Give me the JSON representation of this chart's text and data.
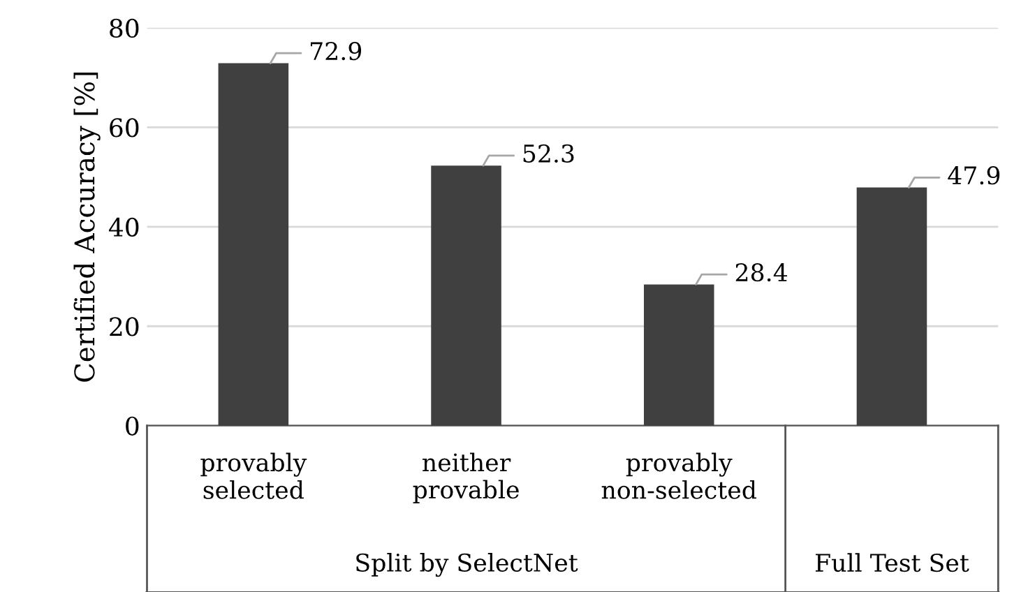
{
  "chart_data": {
    "type": "bar",
    "ylabel": "Certified Accuracy [%]",
    "categories": [
      "provably\nselected",
      "neither\nprovable",
      "provably\nnon-selected",
      null
    ],
    "values": [
      72.9,
      52.3,
      28.4,
      47.9
    ],
    "color": "#404040",
    "ylim": [
      0,
      80
    ],
    "yticks": [
      0,
      20,
      40,
      60,
      80
    ],
    "grid": "y",
    "data_labels": true,
    "annotations": [
      "Split by SelectNet",
      "Full Test Set"
    ]
  }
}
